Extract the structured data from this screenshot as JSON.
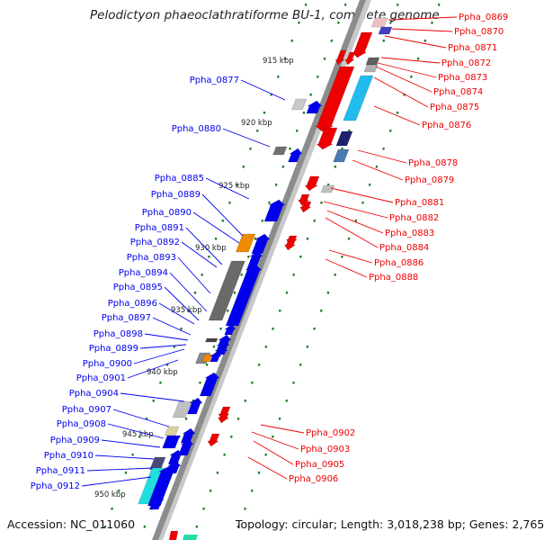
{
  "title": "Pelodictyon phaeoclathratiforme BU-1, complete genome",
  "footer": {
    "accession": "Accession: NC_011060",
    "topology": "Topology: circular; Length: 3,018,238 bp; Genes: 2,765"
  },
  "colors": {
    "forward": "#0000ee",
    "reverse": "#ee0000",
    "tick": "#1a7a1a",
    "backbone": "#888888"
  },
  "ticks": [
    {
      "label": "915 kbp",
      "kbp": 915
    },
    {
      "label": "920 kbp",
      "kbp": 920
    },
    {
      "label": "925 kbp",
      "kbp": 925
    },
    {
      "label": "930 kbp",
      "kbp": 930
    },
    {
      "label": "935 kbp",
      "kbp": 935
    },
    {
      "label": "940 kbp",
      "kbp": 940
    },
    {
      "label": "945 kbp",
      "kbp": 945
    },
    {
      "label": "950 kbp",
      "kbp": 950
    }
  ],
  "forward_labels": [
    "Ppha_0877",
    "Ppha_0880",
    "Ppha_0885",
    "Ppha_0889",
    "Ppha_0890",
    "Ppha_0891",
    "Ppha_0892",
    "Ppha_0893",
    "Ppha_0894",
    "Ppha_0895",
    "Ppha_0896",
    "Ppha_0897",
    "Ppha_0898",
    "Ppha_0899",
    "Ppha_0900",
    "Ppha_0901",
    "Ppha_0904",
    "Ppha_0907",
    "Ppha_0908",
    "Ppha_0909",
    "Ppha_0910",
    "Ppha_0911",
    "Ppha_0912"
  ],
  "reverse_labels": [
    "Ppha_0869",
    "Ppha_0870",
    "Ppha_0871",
    "Ppha_0872",
    "Ppha_0873",
    "Ppha_0874",
    "Ppha_0875",
    "Ppha_0876",
    "Ppha_0878",
    "Ppha_0879",
    "Ppha_0881",
    "Ppha_0882",
    "Ppha_0883",
    "Ppha_0884",
    "Ppha_0886",
    "Ppha_0888",
    "Ppha_0902",
    "Ppha_0903",
    "Ppha_0905",
    "Ppha_0906"
  ]
}
